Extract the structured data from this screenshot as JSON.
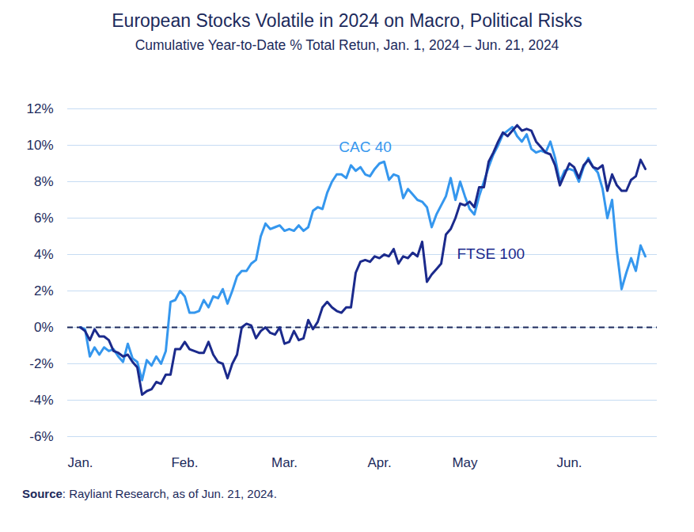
{
  "chart_data": {
    "type": "line",
    "title": "European Stocks Volatile in 2024 on Macro, Political Risks",
    "subtitle": "Cumulative Year-to-Date % Total Retun, Jan. 1, 2024 – Jun. 21, 2024",
    "source": "Source: Rayliant Research, as of Jun. 21, 2024.",
    "categories": [
      "Jan.",
      null,
      null,
      null,
      null,
      null,
      null,
      null,
      null,
      null,
      null,
      null,
      null,
      null,
      null,
      null,
      null,
      null,
      null,
      null,
      null,
      null,
      "Feb.",
      null,
      null,
      null,
      null,
      null,
      null,
      null,
      null,
      null,
      null,
      null,
      null,
      null,
      null,
      null,
      null,
      null,
      null,
      null,
      null,
      "Mar.",
      null,
      null,
      null,
      null,
      null,
      null,
      null,
      null,
      null,
      null,
      null,
      null,
      null,
      null,
      null,
      null,
      null,
      null,
      null,
      "Apr.",
      null,
      null,
      null,
      null,
      null,
      null,
      null,
      null,
      null,
      null,
      null,
      null,
      null,
      null,
      null,
      null,
      null,
      "May",
      null,
      null,
      null,
      null,
      null,
      null,
      null,
      null,
      null,
      null,
      null,
      null,
      null,
      null,
      null,
      null,
      null,
      null,
      null,
      null,
      null,
      "Jun.",
      null,
      null,
      null,
      null,
      null,
      null,
      null,
      null,
      null,
      null,
      null,
      null,
      null,
      null,
      null,
      null
    ],
    "series": [
      {
        "name": "CAC 40",
        "color": "#3597ee",
        "values": [
          0,
          -0.1,
          -1.6,
          -1.1,
          -1.5,
          -1.1,
          -1.3,
          -1.2,
          -1.6,
          -1.9,
          -0.9,
          -1.7,
          -1.9,
          -2.9,
          -1.8,
          -2.1,
          -1.6,
          -2.0,
          -1.3,
          1.4,
          1.5,
          2.0,
          1.7,
          0.8,
          0.8,
          0.9,
          1.5,
          1.1,
          1.7,
          1.6,
          2.1,
          1.3,
          2.0,
          2.8,
          3.1,
          3.1,
          3.5,
          3.7,
          5.0,
          5.7,
          5.4,
          5.5,
          5.6,
          5.3,
          5.4,
          5.3,
          5.6,
          5.3,
          5.5,
          6.4,
          6.6,
          6.5,
          7.4,
          8.0,
          8.4,
          8.4,
          8.2,
          8.9,
          8.6,
          8.8,
          8.4,
          8.3,
          8.7,
          9.0,
          9.1,
          8.1,
          8.4,
          8.3,
          7.1,
          7.6,
          7.3,
          7.0,
          6.9,
          6.6,
          5.5,
          6.2,
          6.7,
          7.2,
          8.2,
          7.0,
          8.0,
          7.2,
          6.5,
          6.2,
          7.2,
          8.0,
          8.8,
          9.5,
          10.0,
          10.6,
          10.8,
          11.0,
          10.5,
          10.2,
          10.6,
          9.8,
          9.6,
          9.7,
          9.6,
          10.2,
          9.3,
          8.0,
          8.6,
          8.7,
          8.6,
          8.0,
          8.8,
          9.3,
          8.8,
          8.5,
          7.6,
          6.0,
          7.0,
          4.2,
          2.1,
          3.0,
          3.8,
          3.1,
          4.5,
          3.9
        ]
      },
      {
        "name": "FTSE 100",
        "color": "#1b2a8c",
        "values": [
          0,
          -0.2,
          -0.7,
          -0.1,
          -0.5,
          -0.5,
          -0.7,
          -1.3,
          -1.4,
          -1.6,
          -1.5,
          -1.9,
          -2.2,
          -3.7,
          -3.5,
          -3.4,
          -3.0,
          -3.1,
          -2.6,
          -2.6,
          -1.2,
          -1.2,
          -0.8,
          -1.2,
          -1.3,
          -1.4,
          -1.4,
          -0.8,
          -1.5,
          -1.9,
          -2.0,
          -2.8,
          -2.0,
          -1.5,
          0.0,
          0.2,
          0.1,
          -0.6,
          -0.2,
          0.0,
          -0.3,
          -0.4,
          0.0,
          -0.9,
          -0.8,
          -0.2,
          -0.7,
          -0.6,
          0.4,
          -0.1,
          0.3,
          1.1,
          1.4,
          1.1,
          0.9,
          0.8,
          1.1,
          1.1,
          3.0,
          3.6,
          3.7,
          3.6,
          3.9,
          3.8,
          4.0,
          3.9,
          4.3,
          3.5,
          3.9,
          3.8,
          4.1,
          3.9,
          4.7,
          2.5,
          2.9,
          3.2,
          3.5,
          5.1,
          5.4,
          6.0,
          6.8,
          6.7,
          6.9,
          6.6,
          7.7,
          7.7,
          9.1,
          9.6,
          10.2,
          10.7,
          10.5,
          10.8,
          11.1,
          10.8,
          10.9,
          10.8,
          10.2,
          9.9,
          9.6,
          9.5,
          8.9,
          7.8,
          8.4,
          9.0,
          8.8,
          8.2,
          8.9,
          9.2,
          8.8,
          8.7,
          8.9,
          7.5,
          8.4,
          7.8,
          7.5,
          7.5,
          8.1,
          8.3,
          9.2,
          8.7
        ]
      }
    ],
    "ylim": [
      -6,
      12
    ],
    "yticks": [
      {
        "value": -6,
        "label": "-6%"
      },
      {
        "value": -4,
        "label": "-4%"
      },
      {
        "value": -2,
        "label": "-2%"
      },
      {
        "value": 0,
        "label": "0%"
      },
      {
        "value": 2,
        "label": "2%"
      },
      {
        "value": 4,
        "label": "4%"
      },
      {
        "value": 6,
        "label": "6%"
      },
      {
        "value": 8,
        "label": "8%"
      },
      {
        "value": 10,
        "label": "10%"
      },
      {
        "value": 12,
        "label": "12%"
      }
    ],
    "reference_line": {
      "value": 0,
      "line_style": "dashed"
    },
    "grid": true
  }
}
